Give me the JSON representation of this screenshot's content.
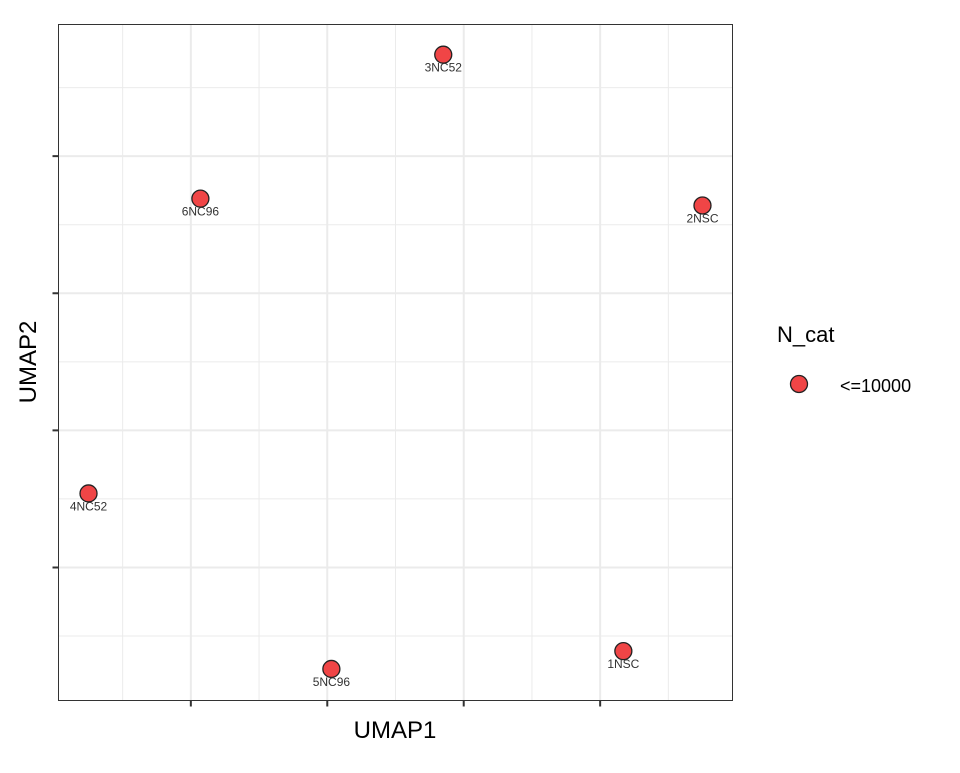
{
  "chart_data": {
    "type": "scatter",
    "title": "",
    "xlabel": "UMAP1",
    "ylabel": "UMAP2",
    "xlim": [
      0.03,
      4.97
    ],
    "ylim": [
      0.03,
      4.96
    ],
    "x_major_ticks": [
      1,
      2,
      3,
      4
    ],
    "y_major_ticks": [
      1,
      2,
      3,
      4
    ],
    "tick_labels_shown": false,
    "grid": true,
    "points": [
      {
        "label": "3NC52",
        "x": 2.85,
        "y": 4.74
      },
      {
        "label": "6NC96",
        "x": 1.07,
        "y": 3.69
      },
      {
        "label": "2NSC",
        "x": 4.75,
        "y": 3.64
      },
      {
        "label": "4NC52",
        "x": 0.25,
        "y": 1.54
      },
      {
        "label": "1NSC",
        "x": 4.17,
        "y": 0.39
      },
      {
        "label": "5NC96",
        "x": 2.03,
        "y": 0.26
      }
    ],
    "legend": {
      "title": "N_cat",
      "position": "right",
      "entries": [
        {
          "label": "<=10000",
          "color": "#F04546"
        }
      ]
    },
    "colors": {
      "point_fill": "#F04546",
      "point_stroke": "#222222",
      "grid": "#EBEBEB",
      "panel_border": "#333333"
    }
  }
}
